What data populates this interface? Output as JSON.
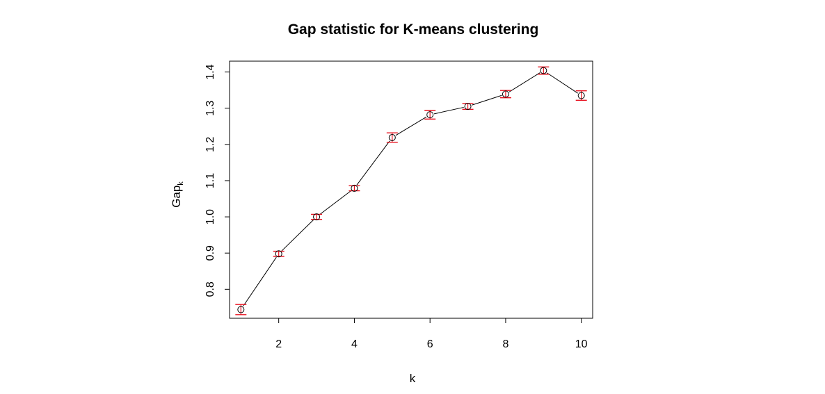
{
  "chart_data": {
    "type": "line",
    "title": "Gap statistic for K-means clustering",
    "xlabel": "k",
    "ylabel": "Gap",
    "ylabel_subscript": "k",
    "xlim": [
      0.7,
      10.3
    ],
    "ylim": [
      0.72,
      1.43
    ],
    "xticks": [
      2,
      4,
      6,
      8,
      10
    ],
    "xtick_labels": [
      "2",
      "4",
      "6",
      "8",
      "10"
    ],
    "yticks": [
      0.8,
      0.9,
      1.0,
      1.1,
      1.2,
      1.3,
      1.4
    ],
    "ytick_labels": [
      "0.8",
      "0.9",
      "1.0",
      "1.1",
      "1.2",
      "1.3",
      "1.4"
    ],
    "grid": false,
    "legend": "none",
    "x": [
      1,
      2,
      3,
      4,
      5,
      6,
      7,
      8,
      9,
      10
    ],
    "series": [
      {
        "values": [
          0.744,
          0.898,
          1.0,
          1.079,
          1.219,
          1.282,
          1.305,
          1.339,
          1.404,
          1.335
        ],
        "error_low": [
          0.73,
          0.891,
          0.993,
          1.072,
          1.206,
          1.27,
          1.297,
          1.329,
          1.394,
          1.322
        ],
        "error_high": [
          0.758,
          0.905,
          1.007,
          1.086,
          1.232,
          1.294,
          1.313,
          1.349,
          1.414,
          1.348
        ],
        "line_color": "#000000",
        "marker": "open-circle",
        "error_bar_color": "#e8101e"
      }
    ]
  }
}
